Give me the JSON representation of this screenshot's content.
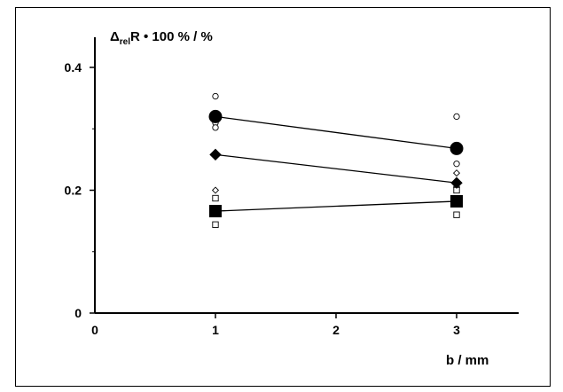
{
  "chart_data": {
    "type": "scatter",
    "ylabel": {
      "main": "Δ",
      "sub": "rel",
      "rest": "R • 100 %  /  %"
    },
    "xlabel": "b  /  mm",
    "xlim": [
      0,
      3.5
    ],
    "ylim": [
      0,
      0.45
    ],
    "xticks": [
      0,
      1,
      2,
      3
    ],
    "yticks": [
      0,
      0.2,
      0.4
    ],
    "xtick_labels": [
      "0",
      "1",
      "2",
      "3"
    ],
    "ytick_labels": [
      "0",
      "0.2",
      "0.4"
    ],
    "grid": false,
    "series": [
      {
        "marker": "circle",
        "filled": true,
        "line": true,
        "x": [
          1,
          3
        ],
        "y": [
          0.32,
          0.268
        ]
      },
      {
        "marker": "diamond",
        "filled": true,
        "line": true,
        "x": [
          1,
          3
        ],
        "y": [
          0.258,
          0.212
        ]
      },
      {
        "marker": "square",
        "filled": true,
        "line": true,
        "x": [
          1,
          3
        ],
        "y": [
          0.166,
          0.182
        ]
      },
      {
        "marker": "circle",
        "filled": false,
        "line": false,
        "x": [
          1,
          1,
          1,
          3,
          3,
          3
        ],
        "y": [
          0.353,
          0.31,
          0.302,
          0.32,
          0.243,
          0.205
        ]
      },
      {
        "marker": "diamond",
        "filled": false,
        "line": false,
        "x": [
          1,
          3,
          3
        ],
        "y": [
          0.2,
          0.228,
          0.205
        ]
      },
      {
        "marker": "square",
        "filled": false,
        "line": false,
        "x": [
          1,
          1,
          3,
          3
        ],
        "y": [
          0.187,
          0.144,
          0.2,
          0.16
        ]
      }
    ]
  }
}
